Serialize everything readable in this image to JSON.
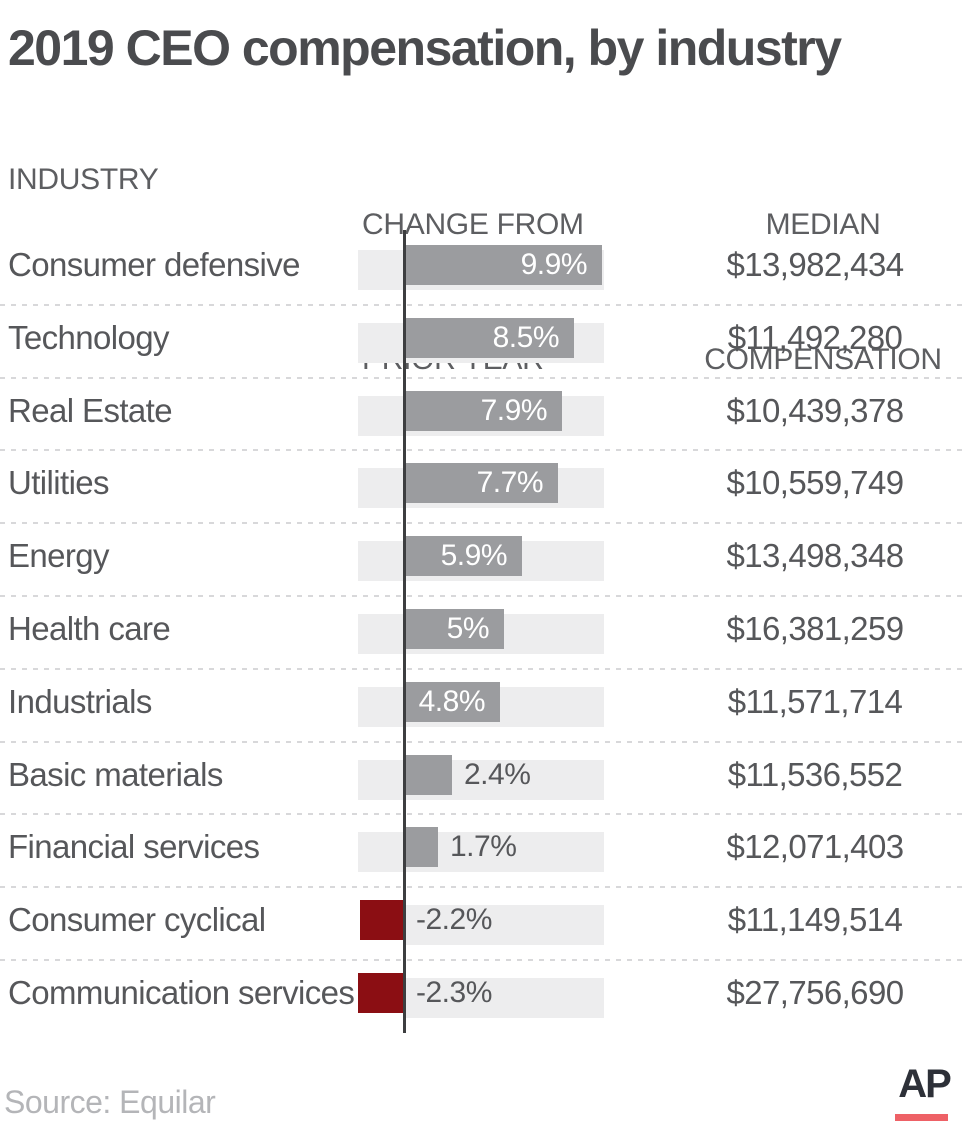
{
  "title": "2019 CEO compensation, by industry",
  "columns": {
    "industry": "INDUSTRY",
    "change": [
      "CHANGE FROM",
      "PRIOR YEAR"
    ],
    "median": [
      "MEDIAN",
      "COMPENSATION"
    ]
  },
  "chart_data": {
    "type": "bar",
    "orientation": "horizontal",
    "x_axis": {
      "unit": "percent",
      "min": -2.3,
      "max": 10,
      "baseline": 0,
      "gridlines": false
    },
    "value_label_position": "inside-right for large bars, outside-right for small and negative bars",
    "categories": [
      "Consumer defensive",
      "Technology",
      "Real Estate",
      "Utilities",
      "Energy",
      "Health care",
      "Industrials",
      "Basic materials",
      "Financial services",
      "Consumer cyclical",
      "Communication services"
    ],
    "series": [
      {
        "name": "Change from prior year (%)",
        "values": [
          9.9,
          8.5,
          7.9,
          7.7,
          5.9,
          5,
          4.8,
          2.4,
          1.7,
          -2.2,
          -2.3
        ]
      },
      {
        "name": "Median compensation (USD)",
        "values": [
          13982434,
          11492280,
          10439378,
          10559749,
          13498348,
          16381259,
          11571714,
          11536552,
          12071403,
          11149514,
          27756690
        ]
      }
    ],
    "rows": [
      {
        "industry": "Consumer defensive",
        "change_pct": 9.9,
        "change_label": "9.9%",
        "median_label": "$13,982,434"
      },
      {
        "industry": "Technology",
        "change_pct": 8.5,
        "change_label": "8.5%",
        "median_label": "$11,492,280"
      },
      {
        "industry": "Real Estate",
        "change_pct": 7.9,
        "change_label": "7.9%",
        "median_label": "$10,439,378"
      },
      {
        "industry": "Utilities",
        "change_pct": 7.7,
        "change_label": "7.7%",
        "median_label": "$10,559,749"
      },
      {
        "industry": "Energy",
        "change_pct": 5.9,
        "change_label": "5.9%",
        "median_label": "$13,498,348"
      },
      {
        "industry": "Health care",
        "change_pct": 5,
        "change_label": "5%",
        "median_label": "$16,381,259"
      },
      {
        "industry": "Industrials",
        "change_pct": 4.8,
        "change_label": "4.8%",
        "median_label": "$11,571,714"
      },
      {
        "industry": "Basic materials",
        "change_pct": 2.4,
        "change_label": "2.4%",
        "median_label": "$11,536,552"
      },
      {
        "industry": "Financial services",
        "change_pct": 1.7,
        "change_label": "1.7%",
        "median_label": "$12,071,403"
      },
      {
        "industry": "Consumer cyclical",
        "change_pct": -2.2,
        "change_label": "-2.2%",
        "median_label": "$11,149,514"
      },
      {
        "industry": "Communication services",
        "change_pct": -2.3,
        "change_label": "-2.3%",
        "median_label": "$27,756,690"
      }
    ]
  },
  "footer": {
    "source": "Source: Equilar",
    "logo_text": "AP"
  },
  "colors": {
    "title": "#4a4b4e",
    "header": "#5d5e61",
    "text": "#56575a",
    "bar_positive": "#9b9c9f",
    "bar_negative": "#8b0e13",
    "track": "#ededee",
    "axis_line": "#3d3e40",
    "separator": "#d8d8da",
    "source_text": "#b4b5b8",
    "ap_logo": "#2d3038",
    "ap_underline": "#ee6166"
  }
}
